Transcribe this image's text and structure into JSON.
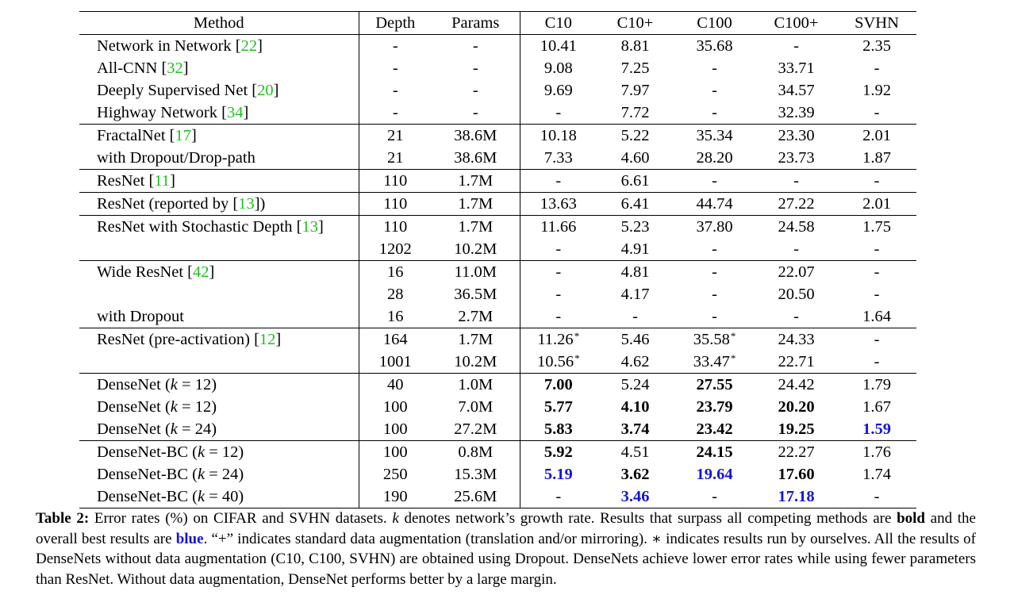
{
  "table": {
    "headers": [
      "Method",
      "Depth",
      "Params",
      "C10",
      "C10+",
      "C100",
      "C100+",
      "SVHN"
    ],
    "rows": [
      {
        "group": 1,
        "method": "Network in Network ",
        "ref": "22",
        "depth": "-",
        "params": "-",
        "c10": "10.41",
        "c10p": "8.81",
        "c100": "35.68",
        "c100p": "-",
        "svhn": "2.35"
      },
      {
        "group": 1,
        "method": "All-CNN ",
        "ref": "32",
        "depth": "-",
        "params": "-",
        "c10": "9.08",
        "c10p": "7.25",
        "c100": "-",
        "c100p": "33.71",
        "svhn": "-"
      },
      {
        "group": 1,
        "method": "Deeply Supervised Net ",
        "ref": "20",
        "depth": "-",
        "params": "-",
        "c10": "9.69",
        "c10p": "7.97",
        "c100": "-",
        "c100p": "34.57",
        "svhn": "1.92"
      },
      {
        "group": 1,
        "method": "Highway Network ",
        "ref": "34",
        "depth": "-",
        "params": "-",
        "c10": "-",
        "c10p": "7.72",
        "c100": "-",
        "c100p": "32.39",
        "svhn": "-"
      },
      {
        "group": 2,
        "method": "FractalNet ",
        "ref": "17",
        "depth": "21",
        "params": "38.6M",
        "c10": "10.18",
        "c10p": "5.22",
        "c100": "35.34",
        "c100p": "23.30",
        "svhn": "2.01"
      },
      {
        "group": 2,
        "method": "with Dropout/Drop-path",
        "ref": "",
        "depth": "21",
        "params": "38.6M",
        "c10": "7.33",
        "c10p": "4.60",
        "c100": "28.20",
        "c100p": "23.73",
        "svhn": "1.87"
      },
      {
        "group": 3,
        "method": "ResNet ",
        "ref": "11",
        "depth": "110",
        "params": "1.7M",
        "c10": "-",
        "c10p": "6.61",
        "c100": "-",
        "c100p": "-",
        "svhn": "-"
      },
      {
        "group": 4,
        "method": "ResNet (reported by ",
        "ref": "13",
        "suffix": ")",
        "depth": "110",
        "params": "1.7M",
        "c10": "13.63",
        "c10p": "6.41",
        "c100": "44.74",
        "c100p": "27.22",
        "svhn": "2.01"
      },
      {
        "group": 5,
        "method": "ResNet with Stochastic Depth ",
        "ref": "13",
        "depth": "110",
        "params": "1.7M",
        "c10": "11.66",
        "c10p": "5.23",
        "c100": "37.80",
        "c100p": "24.58",
        "svhn": "1.75"
      },
      {
        "group": 5,
        "method": "",
        "ref": "",
        "depth": "1202",
        "params": "10.2M",
        "c10": "-",
        "c10p": "4.91",
        "c100": "-",
        "c100p": "-",
        "svhn": "-"
      },
      {
        "group": 6,
        "method": "Wide ResNet ",
        "ref": "42",
        "depth": "16",
        "params": "11.0M",
        "c10": "-",
        "c10p": "4.81",
        "c100": "-",
        "c100p": "22.07",
        "svhn": "-"
      },
      {
        "group": 6,
        "method": "",
        "ref": "",
        "depth": "28",
        "params": "36.5M",
        "c10": "-",
        "c10p": "4.17",
        "c100": "-",
        "c100p": "20.50",
        "svhn": "-"
      },
      {
        "group": 6,
        "method": "with Dropout",
        "ref": "",
        "depth": "16",
        "params": "2.7M",
        "c10": "-",
        "c10p": "-",
        "c100": "-",
        "c100p": "-",
        "svhn": "1.64"
      },
      {
        "group": 7,
        "method": "ResNet (pre-activation) ",
        "ref": "12",
        "depth": "164",
        "params": "1.7M",
        "c10": "11.26*",
        "c10p": "5.46",
        "c100": "35.58*",
        "c100p": "24.33",
        "svhn": "-"
      },
      {
        "group": 7,
        "method": "",
        "ref": "",
        "depth": "1001",
        "params": "10.2M",
        "c10": "10.56*",
        "c10p": "4.62",
        "c100": "33.47*",
        "c100p": "22.71",
        "svhn": "-"
      },
      {
        "group": 8,
        "method": "DenseNet (",
        "k": "k = 12",
        "suffix": ")",
        "ref": "",
        "depth": "40",
        "params": "1.0M",
        "c10": "7.00",
        "c10p": "5.24",
        "c100": "27.55",
        "c100p": "24.42",
        "svhn": "1.79",
        "bold": [
          "c10",
          "c100"
        ],
        "blue": []
      },
      {
        "group": 8,
        "method": "DenseNet (",
        "k": "k = 12",
        "suffix": ")",
        "ref": "",
        "depth": "100",
        "params": "7.0M",
        "c10": "5.77",
        "c10p": "4.10",
        "c100": "23.79",
        "c100p": "20.20",
        "svhn": "1.67",
        "bold": [
          "c10",
          "c10p",
          "c100",
          "c100p"
        ],
        "blue": []
      },
      {
        "group": 8,
        "method": "DenseNet (",
        "k": "k = 24",
        "suffix": ")",
        "ref": "",
        "depth": "100",
        "params": "27.2M",
        "c10": "5.83",
        "c10p": "3.74",
        "c100": "23.42",
        "c100p": "19.25",
        "svhn": "1.59",
        "bold": [
          "c10",
          "c10p",
          "c100",
          "c100p"
        ],
        "blue": [
          "svhn"
        ]
      },
      {
        "group": 9,
        "method": "DenseNet-BC (",
        "k": "k = 12",
        "suffix": ")",
        "ref": "",
        "depth": "100",
        "params": "0.8M",
        "c10": "5.92",
        "c10p": "4.51",
        "c100": "24.15",
        "c100p": "22.27",
        "svhn": "1.76",
        "bold": [
          "c10",
          "c100"
        ],
        "blue": []
      },
      {
        "group": 9,
        "method": "DenseNet-BC (",
        "k": "k = 24",
        "suffix": ")",
        "ref": "",
        "depth": "250",
        "params": "15.3M",
        "c10": "5.19",
        "c10p": "3.62",
        "c100": "19.64",
        "c100p": "17.60",
        "svhn": "1.74",
        "bold": [
          "c10p",
          "c100p"
        ],
        "blue": [
          "c10",
          "c100"
        ]
      },
      {
        "group": 9,
        "method": "DenseNet-BC (",
        "k": "k = 40",
        "suffix": ")",
        "ref": "",
        "depth": "190",
        "params": "25.6M",
        "c10": "-",
        "c10p": "3.46",
        "c100": "-",
        "c100p": "17.18",
        "svhn": "-",
        "bold": [],
        "blue": [
          "c10p",
          "c100p"
        ]
      }
    ]
  },
  "caption": {
    "label": "Table 2:",
    "part1": " Error rates (%) on CIFAR and SVHN datasets. ",
    "k": "k",
    "part2": " denotes network’s growth rate. Results that surpass all competing methods are ",
    "bold_word": "bold",
    "part3": " and the overall best results are ",
    "blue_word": "blue",
    "part4": ". “+” indicates standard data augmentation (translation and/or mirroring). ∗ indicates results run by ourselves. All the results of DenseNets without data augmentation (C10, C100, SVHN) are obtained using Dropout. DenseNets achieve lower error rates while using fewer parameters than ResNet. Without data augmentation, DenseNet performs better by a large margin.",
    "colors": {
      "blue": "#1414d8",
      "ref_green": "#1fbf1f"
    }
  }
}
